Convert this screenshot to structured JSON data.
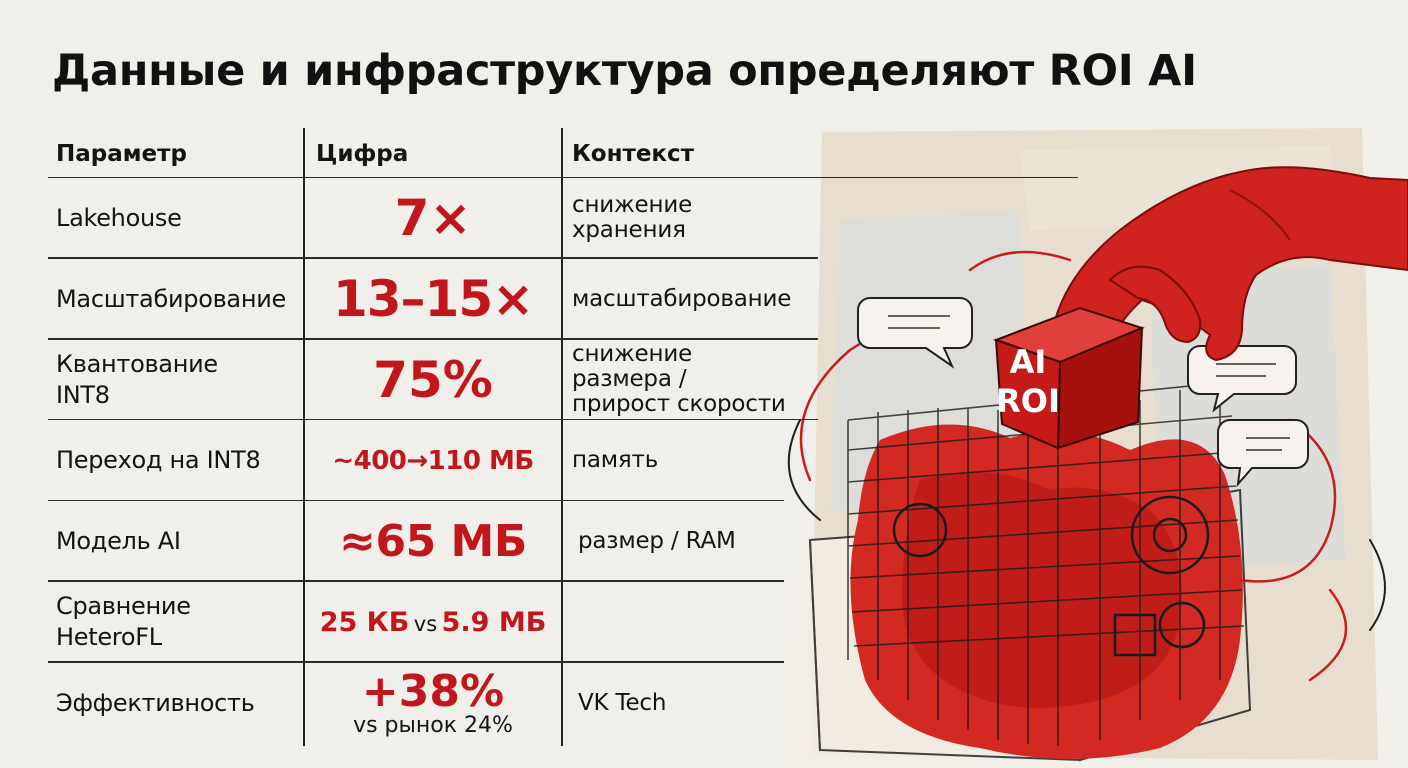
{
  "title": "Данные и инфраструктура определяют ROI AI",
  "colors": {
    "accent": "#c0161c",
    "text": "#141414",
    "background": "#f1efea"
  },
  "table": {
    "headers": [
      "Параметр",
      "Цифра",
      "Контекст"
    ],
    "rows": [
      {
        "param": "Lakehouse",
        "value": "7×",
        "context": "снижение\nхранения"
      },
      {
        "param": "Масштабирование",
        "value": "13–15×",
        "context": "масштабирование"
      },
      {
        "param": "Квантование\nINT8",
        "value": "75%",
        "context": "снижение\nразмера /\nприрост скорости"
      },
      {
        "param": "Переход на INT8",
        "value": "~400→110 МБ",
        "context": "память"
      },
      {
        "param": "Модель AI",
        "value": "≈65 МБ",
        "context": "размер / RAM"
      },
      {
        "param": "Сравнение\nHeteroFL",
        "value_a": "25 КБ",
        "value_vs": "vs",
        "value_b": "5.9 МБ",
        "context": ""
      },
      {
        "param": "Эффективность",
        "value": "+38%",
        "value_sub": "vs рынок 24%",
        "context": "VK Tech"
      }
    ]
  },
  "illustration": {
    "cube_line1": "AI",
    "cube_line2": "ROI"
  }
}
